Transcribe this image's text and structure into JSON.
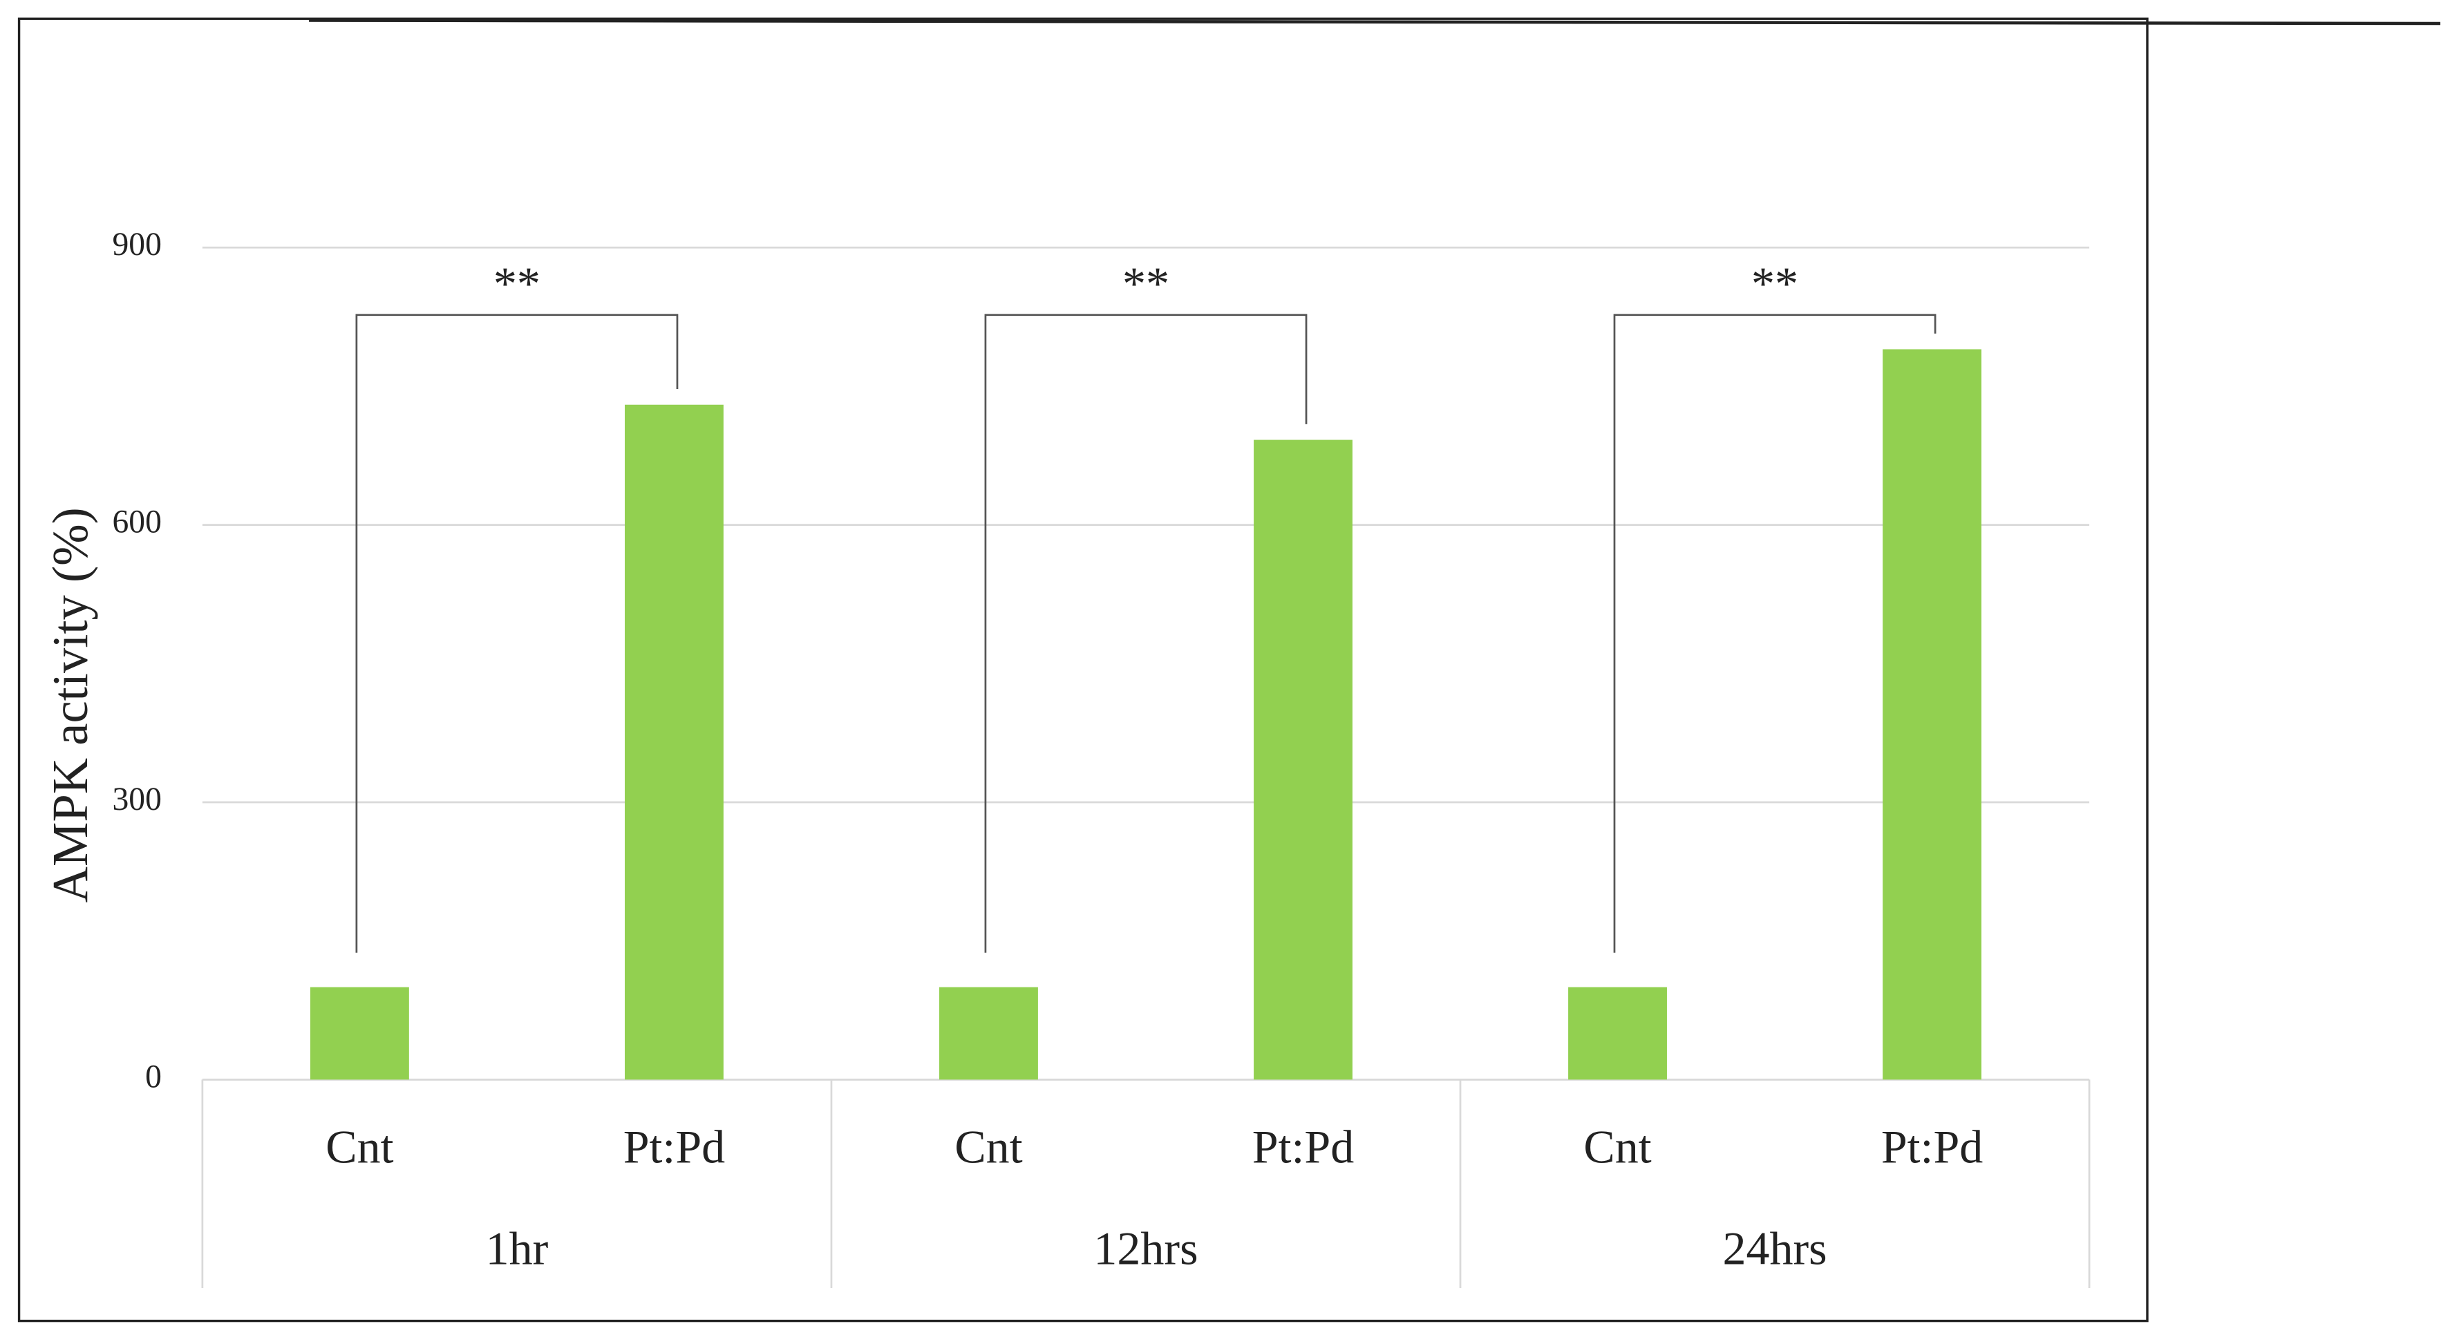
{
  "chart_data": {
    "type": "bar",
    "ylabel": "AMPK activity (%)",
    "categories": [
      "Cnt",
      "Pt:Pd",
      "Cnt",
      "Pt:Pd",
      "Cnt",
      "Pt:Pd"
    ],
    "groups": [
      "1hr",
      "12hrs",
      "24hrs"
    ],
    "values": [
      100,
      730,
      100,
      692,
      100,
      790
    ],
    "color": "#92d050",
    "ylim": [
      0,
      900
    ],
    "yticks": [
      0,
      300,
      600,
      900
    ],
    "grid": true,
    "annotations": [
      "**",
      "**",
      "**"
    ]
  }
}
